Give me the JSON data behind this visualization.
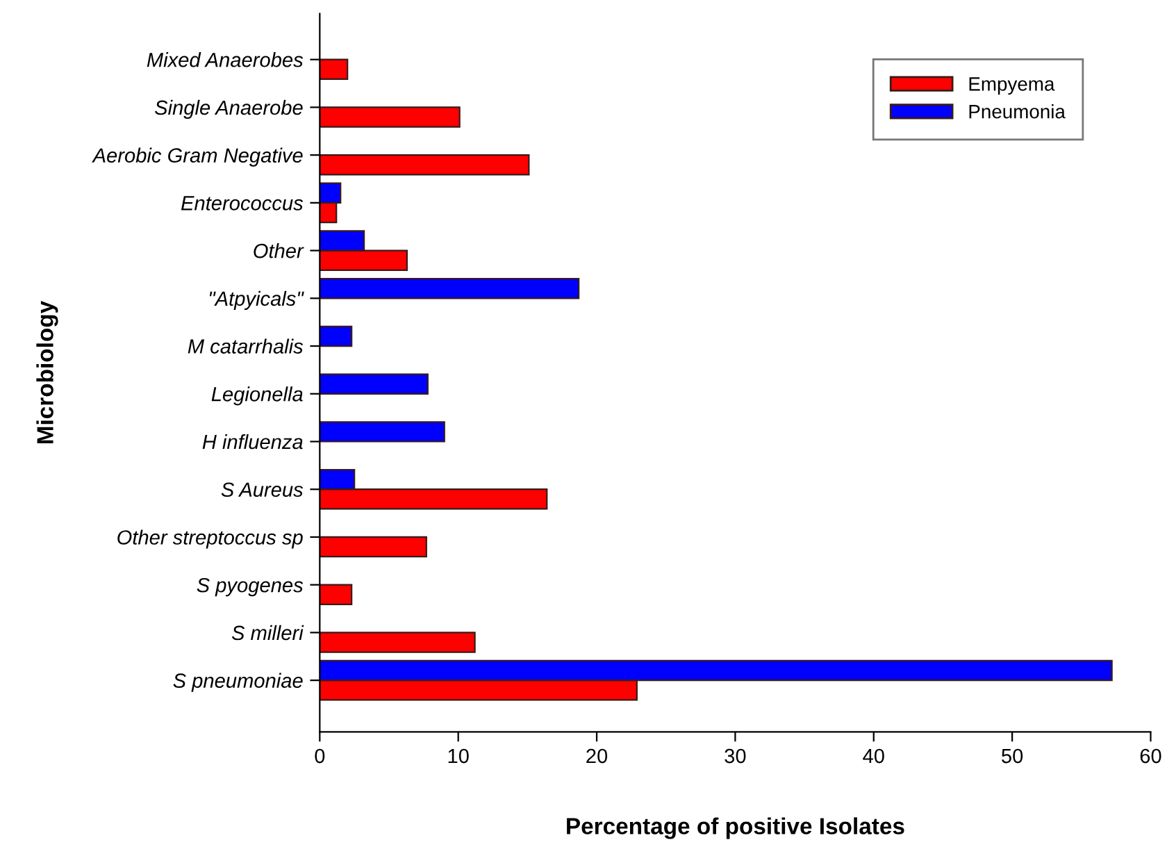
{
  "chart_data": {
    "type": "bar",
    "orientation": "horizontal",
    "xlabel": "Percentage of positive Isolates",
    "ylabel": "Microbiology",
    "categories": [
      "Mixed Anaerobes",
      "Single Anaerobe",
      "Aerobic Gram Negative",
      "Enterococcus",
      "Other",
      "\"Atpyicals\"",
      "M catarrhalis",
      "Legionella",
      "H influenza",
      "S Aureus",
      "Other streptoccus sp",
      "S pyogenes",
      "S milleri",
      "S pneumoniae"
    ],
    "series": [
      {
        "name": "Empyema",
        "color": "#ff0000",
        "values": [
          2.0,
          10.1,
          15.1,
          1.2,
          6.3,
          null,
          null,
          null,
          null,
          16.4,
          7.7,
          2.3,
          11.2,
          22.9
        ]
      },
      {
        "name": "Pneumonia",
        "color": "#0000ff",
        "values": [
          null,
          null,
          null,
          1.5,
          3.2,
          18.7,
          2.3,
          7.8,
          9.0,
          2.5,
          null,
          null,
          null,
          57.2
        ]
      }
    ],
    "xlim": [
      0,
      60
    ],
    "xticks": [
      0,
      10,
      20,
      30,
      40,
      50,
      60
    ],
    "grid": false,
    "legend": "top right"
  }
}
